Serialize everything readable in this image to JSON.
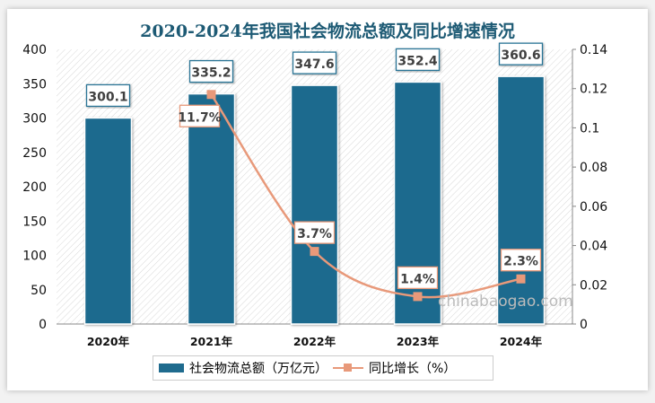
{
  "chart_data": {
    "type": "bar+line",
    "title": "2020-2024年我国社会物流总额及同比增速情况",
    "categories": [
      "2020年",
      "2021年",
      "2022年",
      "2023年",
      "2024年"
    ],
    "series": [
      {
        "name": "社会物流总额（万亿元）",
        "type": "bar",
        "axis": "left",
        "values": [
          300.1,
          335.2,
          347.6,
          352.4,
          360.6
        ],
        "color": "#1f6b8e"
      },
      {
        "name": "同比增长（%）",
        "type": "line",
        "axis": "right",
        "values": [
          null,
          0.117,
          0.037,
          0.014,
          0.023
        ],
        "labels": [
          null,
          "11.7%",
          "3.7%",
          "1.4%",
          "2.3%"
        ],
        "color": "#e8997a"
      }
    ],
    "ylim": [
      0,
      400
    ],
    "yticks": [
      0,
      50,
      100,
      150,
      200,
      250,
      300,
      350,
      400
    ],
    "y2lim": [
      0,
      0.14
    ],
    "y2ticks": [
      0,
      0.02,
      0.04,
      0.06,
      0.08,
      0.1,
      0.12,
      0.14
    ],
    "legend": "bottom"
  },
  "watermark": "chinabaogao.com"
}
